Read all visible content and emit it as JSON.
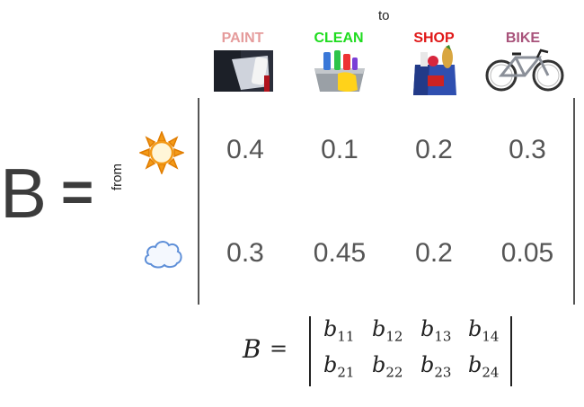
{
  "header": {
    "to_label": "to",
    "from_label": "from"
  },
  "lhs": {
    "symbol": "B",
    "equals": "="
  },
  "columns": [
    {
      "label": "PAINT",
      "color": "#e59b9b",
      "icon": "paint-roller-icon"
    },
    {
      "label": "CLEAN",
      "color": "#1fdc1f",
      "icon": "cleaning-bucket-icon"
    },
    {
      "label": "SHOP",
      "color": "#e01818",
      "icon": "shopping-bag-icon"
    },
    {
      "label": "BIKE",
      "color": "#a8527a",
      "icon": "bicycle-icon"
    }
  ],
  "rows": [
    {
      "icon": "sun-icon",
      "values": [
        "0.4",
        "0.1",
        "0.2",
        "0.3"
      ]
    },
    {
      "icon": "cloud-icon",
      "values": [
        "0.3",
        "0.45",
        "0.2",
        "0.05"
      ]
    }
  ],
  "formula": {
    "symbol": "B",
    "equals": "=",
    "elements": [
      [
        {
          "base": "b",
          "sub": "11"
        },
        {
          "base": "b",
          "sub": "12"
        },
        {
          "base": "b",
          "sub": "13"
        },
        {
          "base": "b",
          "sub": "14"
        }
      ],
      [
        {
          "base": "b",
          "sub": "21"
        },
        {
          "base": "b",
          "sub": "22"
        },
        {
          "base": "b",
          "sub": "23"
        },
        {
          "base": "b",
          "sub": "24"
        }
      ]
    ]
  }
}
